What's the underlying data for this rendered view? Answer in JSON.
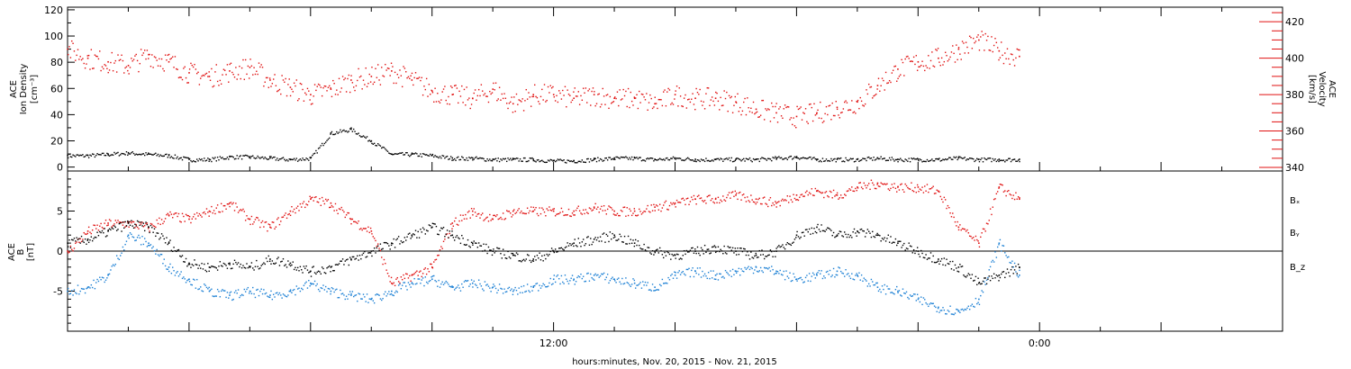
{
  "colors": {
    "black": "#000000",
    "red": "#e01010",
    "blue": "#1a7fd4"
  },
  "xlabel": "hours:minutes, Nov. 20, 2015 - Nov. 21, 2015",
  "x_ticks": [
    {
      "hour": 12,
      "label": "12:00"
    },
    {
      "hour": 24,
      "label": "0:00"
    }
  ],
  "chart_data": [
    {
      "type": "scatter",
      "panel": "top",
      "ylabel_left": [
        "ACE",
        "Ion Density",
        "[cm⁻³]"
      ],
      "ylabel_right": [
        "ACE",
        "Velocity",
        "[km/s]"
      ],
      "x_range_hours": [
        0,
        30
      ],
      "ylim_left": [
        -3,
        122
      ],
      "ylim_right": [
        338,
        428
      ],
      "left_ticks": [
        "0",
        "20",
        "40",
        "60",
        "80",
        "100",
        "120"
      ],
      "right_ticks": [
        "340",
        "360",
        "380",
        "400",
        "420"
      ],
      "grid": false,
      "series": [
        {
          "name": "Ion Density",
          "axis": "left",
          "color": "black",
          "x": [
            0,
            0.5,
            1,
            1.5,
            2,
            2.5,
            3,
            3.5,
            4,
            4.5,
            5,
            5.5,
            6,
            6.5,
            7,
            7.5,
            8,
            8.5,
            9,
            9.5,
            10,
            10.5,
            11,
            11.5,
            12,
            12.5,
            13,
            13.5,
            14,
            14.5,
            15,
            15.5,
            16,
            16.5,
            17,
            17.5,
            18,
            18.5,
            19,
            19.5,
            20,
            20.5,
            21,
            21.5,
            22,
            22.5,
            23,
            23.5
          ],
          "y": [
            9,
            9,
            10,
            11,
            10,
            9,
            6,
            6,
            8,
            8,
            7,
            6,
            7,
            26,
            29,
            20,
            10,
            10,
            9,
            7,
            7,
            6,
            6,
            6,
            5,
            5,
            6,
            7,
            7,
            6,
            7,
            6,
            6,
            6,
            6,
            7,
            8,
            6,
            6,
            6,
            7,
            6,
            6,
            6,
            7,
            6,
            6,
            6
          ]
        },
        {
          "name": "Velocity",
          "axis": "right",
          "color": "red",
          "x": [
            0,
            0.5,
            1,
            1.5,
            2,
            2.5,
            3,
            3.5,
            4,
            4.5,
            5,
            5.5,
            6,
            6.5,
            7,
            7.5,
            8,
            8.5,
            9,
            9.5,
            10,
            10.5,
            11,
            11.5,
            12,
            12.5,
            13,
            13.5,
            14,
            14.5,
            15,
            15.5,
            16,
            16.5,
            17,
            17.5,
            18,
            18.5,
            19,
            19.5,
            20,
            20.5,
            21,
            21.5,
            22,
            22.5,
            23,
            23.5
          ],
          "y": [
            405,
            400,
            398,
            396,
            402,
            398,
            392,
            390,
            393,
            395,
            388,
            384,
            380,
            383,
            388,
            390,
            393,
            388,
            382,
            380,
            378,
            383,
            375,
            380,
            380,
            378,
            380,
            378,
            378,
            375,
            380,
            378,
            378,
            376,
            372,
            370,
            368,
            370,
            373,
            376,
            385,
            394,
            398,
            400,
            405,
            410,
            404,
            401
          ]
        }
      ]
    },
    {
      "type": "scatter",
      "panel": "bottom",
      "ylabel": [
        "ACE",
        "B",
        "[nT]"
      ],
      "x_range_hours": [
        0,
        30
      ],
      "ylim": [
        -10,
        10
      ],
      "y_ticks": [
        "-5",
        "0",
        "5"
      ],
      "zero_line": true,
      "grid": false,
      "legend": [
        "Bₓ",
        "Bᵧ",
        "B_z"
      ],
      "series": [
        {
          "name": "Bₓ",
          "color": "black",
          "x": [
            0,
            0.5,
            1,
            1.5,
            2,
            2.5,
            3,
            3.5,
            4,
            4.5,
            5,
            5.5,
            6,
            6.5,
            7,
            7.5,
            8,
            8.5,
            9,
            9.5,
            10,
            10.5,
            11,
            11.5,
            12,
            12.5,
            13,
            13.5,
            14,
            14.5,
            15,
            15.5,
            16,
            16.5,
            17,
            17.5,
            18,
            18.5,
            19,
            19.5,
            20,
            20.5,
            21,
            21.5,
            22,
            22.5,
            23,
            23.5
          ],
          "y": [
            1,
            1.5,
            2.5,
            3.5,
            3,
            1,
            -1.5,
            -2,
            -1.5,
            -2,
            -1,
            -1.5,
            -2.5,
            -2,
            -1,
            0,
            1,
            2,
            3,
            2,
            1,
            0,
            -0.5,
            -1,
            0,
            1,
            1.5,
            2,
            1,
            0,
            -0.5,
            0,
            0.5,
            0,
            -0.5,
            0,
            2,
            3,
            2,
            2.5,
            2,
            1,
            0,
            -1,
            -2,
            -4,
            -3,
            -2
          ]
        },
        {
          "name": "Bᵧ",
          "color": "blue",
          "x": [
            0,
            0.5,
            1,
            1.5,
            2,
            2.5,
            3,
            3.5,
            4,
            4.5,
            5,
            5.5,
            6,
            6.5,
            7,
            7.5,
            8,
            8.5,
            9,
            9.5,
            10,
            10.5,
            11,
            11.5,
            12,
            12.5,
            13,
            13.5,
            14,
            14.5,
            15,
            15.5,
            16,
            16.5,
            17,
            17.5,
            18,
            18.5,
            19,
            19.5,
            20,
            20.5,
            21,
            21.5,
            22,
            22.5,
            23,
            23.5
          ],
          "y": [
            -5,
            -4.5,
            -3,
            2,
            1,
            -2,
            -3.5,
            -5,
            -5.5,
            -5,
            -5.5,
            -5,
            -4,
            -5,
            -5.5,
            -6,
            -5,
            -4,
            -3.5,
            -4.5,
            -4,
            -4.5,
            -5,
            -4.5,
            -3.5,
            -3.5,
            -3,
            -3.5,
            -4,
            -4.5,
            -3,
            -2.5,
            -3,
            -2.5,
            -2,
            -2.5,
            -3.5,
            -3,
            -2.5,
            -3,
            -4.5,
            -5,
            -6,
            -7,
            -7.5,
            -6,
            1,
            -3
          ]
        },
        {
          "name": "B_z",
          "color": "red",
          "x": [
            0,
            0.5,
            1,
            1.5,
            2,
            2.5,
            3,
            3.5,
            4,
            4.5,
            5,
            5.5,
            6,
            6.5,
            7,
            7.5,
            8,
            8.5,
            9,
            9.5,
            10,
            10.5,
            11,
            11.5,
            12,
            12.5,
            13,
            13.5,
            14,
            14.5,
            15,
            15.5,
            16,
            16.5,
            17,
            17.5,
            18,
            18.5,
            19,
            19.5,
            20,
            20.5,
            21,
            21.5,
            22,
            22.5,
            23,
            23.5
          ],
          "y": [
            0,
            2.5,
            3.5,
            3.5,
            3,
            4.5,
            4,
            5,
            6,
            4,
            3,
            5,
            6.5,
            6,
            4,
            2.5,
            -4,
            -3,
            -2,
            3.5,
            5,
            4,
            5,
            5,
            5,
            5,
            5.5,
            5,
            5,
            5.5,
            6,
            6.5,
            6.5,
            7,
            6.5,
            6,
            7,
            7.5,
            7,
            8,
            8.5,
            8,
            8,
            7.5,
            3,
            1,
            8,
            6.5
          ]
        }
      ]
    }
  ]
}
